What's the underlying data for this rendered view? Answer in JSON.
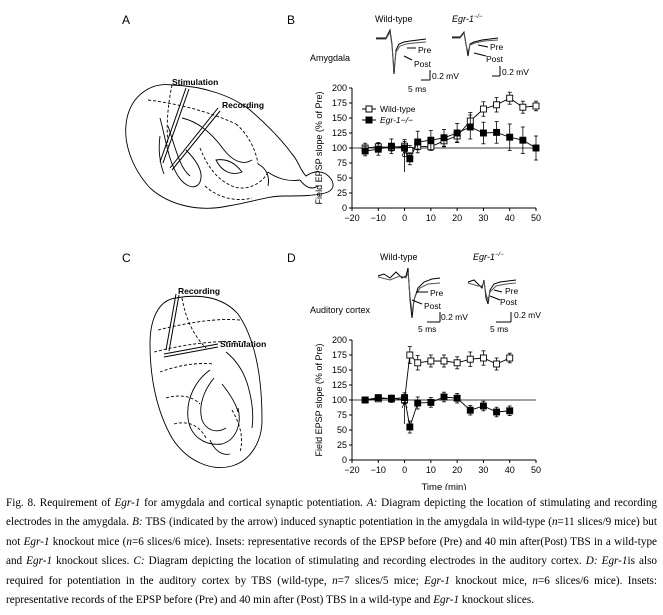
{
  "panels": {
    "A": {
      "letter": "A",
      "stim_label": "Stimulation",
      "rec_label": "Recording"
    },
    "B": {
      "letter": "B",
      "region": "Amygdala",
      "trace_wt": "Wild-type",
      "trace_ko_gene": "Egr-1",
      "trace_ko_sup": "−/−",
      "pre": "Pre",
      "post": "Post",
      "sb_mv_1": "0.2 mV",
      "sb_ms_1": "5 ms",
      "sb_mv_2": "0.2 mV"
    },
    "C": {
      "letter": "C",
      "stim_label": "Stimulation",
      "rec_label": "Recording"
    },
    "D": {
      "letter": "D",
      "region": "Auditory cortex",
      "trace_wt": "Wild-type",
      "trace_ko_gene": "Egr-1",
      "trace_ko_sup": "−/−",
      "pre": "Pre",
      "post": "Post",
      "sb_mv_1": "0.2 mV",
      "sb_ms_1": "5 ms",
      "sb_mv_2": "0.2 mV",
      "sb_ms_2": "5 ms"
    }
  },
  "chart_data": [
    {
      "type": "line",
      "panel": "B",
      "xlabel": "",
      "ylabel": "Field EPSP slope (% of Pre)",
      "xlim": [
        -20,
        50
      ],
      "ylim": [
        0,
        200
      ],
      "xticks": [
        -20,
        -10,
        0,
        10,
        20,
        30,
        40,
        50
      ],
      "yticks": [
        0,
        25,
        50,
        75,
        100,
        125,
        150,
        175,
        200
      ],
      "legend": "top-left",
      "series": [
        {
          "name": "Wild-type",
          "marker": "open-square",
          "x": [
            -15,
            -10,
            -5,
            0,
            2,
            5,
            10,
            15,
            20,
            25,
            30,
            35,
            40,
            45,
            50
          ],
          "y": [
            100,
            102,
            101,
            103,
            96,
            103,
            102,
            112,
            120,
            145,
            165,
            172,
            183,
            168,
            170
          ],
          "err": [
            8,
            7,
            6,
            8,
            8,
            6,
            6,
            10,
            10,
            14,
            12,
            12,
            10,
            10,
            8
          ]
        },
        {
          "name": "Egr-1−/−",
          "marker": "filled-square",
          "x": [
            -15,
            -10,
            -5,
            0,
            2,
            5,
            10,
            15,
            20,
            25,
            30,
            35,
            40,
            45,
            50
          ],
          "y": [
            95,
            98,
            103,
            100,
            82,
            110,
            113,
            117,
            125,
            135,
            125,
            126,
            118,
            113,
            100
          ],
          "err": [
            8,
            10,
            12,
            14,
            10,
            18,
            16,
            14,
            16,
            20,
            18,
            18,
            22,
            22,
            20
          ]
        }
      ],
      "baseline": 100,
      "tbs_arrow_x": 0
    },
    {
      "type": "line",
      "panel": "D",
      "xlabel": "Time (min)",
      "ylabel": "Field EPSP slope (% of Pre)",
      "xlim": [
        -20,
        50
      ],
      "ylim": [
        0,
        200
      ],
      "xticks": [
        -20,
        -10,
        0,
        10,
        20,
        30,
        40,
        50
      ],
      "yticks": [
        0,
        25,
        50,
        75,
        100,
        125,
        150,
        175,
        200
      ],
      "series": [
        {
          "name": "Wild-type",
          "marker": "open-square",
          "x": [
            -15,
            -10,
            -5,
            0,
            2,
            5,
            10,
            15,
            20,
            25,
            30,
            35,
            40
          ],
          "y": [
            100,
            102,
            103,
            100,
            175,
            162,
            165,
            165,
            162,
            168,
            170,
            160,
            170
          ],
          "err": [
            3,
            4,
            4,
            6,
            14,
            12,
            10,
            10,
            10,
            12,
            12,
            10,
            8
          ]
        },
        {
          "name": "Egr-1−/−",
          "marker": "filled-square",
          "x": [
            -15,
            -10,
            -5,
            0,
            2,
            5,
            10,
            15,
            20,
            25,
            30,
            35,
            40
          ],
          "y": [
            100,
            104,
            102,
            104,
            55,
            95,
            96,
            105,
            103,
            83,
            90,
            80,
            82
          ],
          "err": [
            3,
            4,
            6,
            8,
            10,
            10,
            8,
            8,
            8,
            8,
            8,
            8,
            8
          ]
        }
      ],
      "baseline": 100,
      "tbs_arrow_x": 0
    }
  ],
  "caption": {
    "p1": "Fig. 8.  Requirement of ",
    "gene": "Egr-1",
    "p2": " for amygdala and cortical synaptic potentiation. ",
    "A": "A:",
    "p3": " Diagram depicting the location of stimulating and recording electrodes in the amygdala. ",
    "B": "B:",
    "p4": " TBS (indicated by the arrow) induced synaptic potentiation in the amygdala in wild-type (",
    "n1": "n",
    "p5": "=11 slices/9 mice) but not ",
    "p6": " knockout mice (",
    "p7": "=6 slices/6 mice).  Insets: representative records of the EPSP before (Pre) and 40 min after(Post) TBS in a wild-type and ",
    "p8": " knockout slices. ",
    "C": "C:",
    "p9": " Diagram depicting the location of stimulating and recording electrodes in the auditory cortex. ",
    "D": "D:",
    "p10": " ",
    "p11": "is also required for potentiation in the auditory cortex by TBS (wild-type, ",
    "p12": "=7 slices/5 mice; ",
    "p13": " knockout mice, ",
    "p14": "=6 slices/6 mice). Insets: representative records of the EPSP before (Pre) and 40 min after (Post) TBS in a wild-type and ",
    "p15": " knockout slices."
  }
}
